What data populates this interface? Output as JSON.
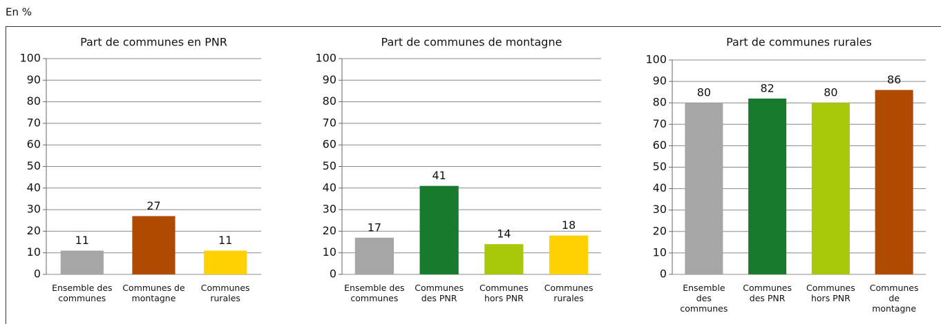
{
  "unit_label": "En %",
  "chart_data": [
    {
      "type": "bar",
      "title": "Part de communes en PNR",
      "categories": [
        "Ensemble des communes",
        "Communes de montagne",
        "Communes rurales"
      ],
      "values": [
        11,
        27,
        11
      ],
      "colors": [
        "#a6a6a6",
        "#b04a00",
        "#ffd100"
      ],
      "ylim": [
        0,
        100
      ],
      "yticks": [
        0,
        10,
        20,
        30,
        40,
        50,
        60,
        70,
        80,
        90,
        100
      ],
      "grid": true
    },
    {
      "type": "bar",
      "title": "Part de communes de montagne",
      "categories": [
        "Ensemble des communes",
        "Communes des PNR",
        "Communes hors PNR",
        "Communes rurales"
      ],
      "values": [
        17,
        41,
        14,
        18
      ],
      "colors": [
        "#a6a6a6",
        "#177a2c",
        "#a8c80a",
        "#ffd100"
      ],
      "ylim": [
        0,
        100
      ],
      "yticks": [
        0,
        10,
        20,
        30,
        40,
        50,
        60,
        70,
        80,
        90,
        100
      ],
      "grid": true
    },
    {
      "type": "bar",
      "title": "Part de communes rurales",
      "categories": [
        "Ensemble des communes",
        "Communes des PNR",
        "Communes hors PNR",
        "Communes de montagne"
      ],
      "values": [
        80,
        82,
        80,
        86
      ],
      "colors": [
        "#a6a6a6",
        "#177a2c",
        "#a8c80a",
        "#b04a00"
      ],
      "ylim": [
        0,
        100
      ],
      "yticks": [
        0,
        10,
        20,
        30,
        40,
        50,
        60,
        70,
        80,
        90,
        100
      ],
      "grid": true
    }
  ]
}
